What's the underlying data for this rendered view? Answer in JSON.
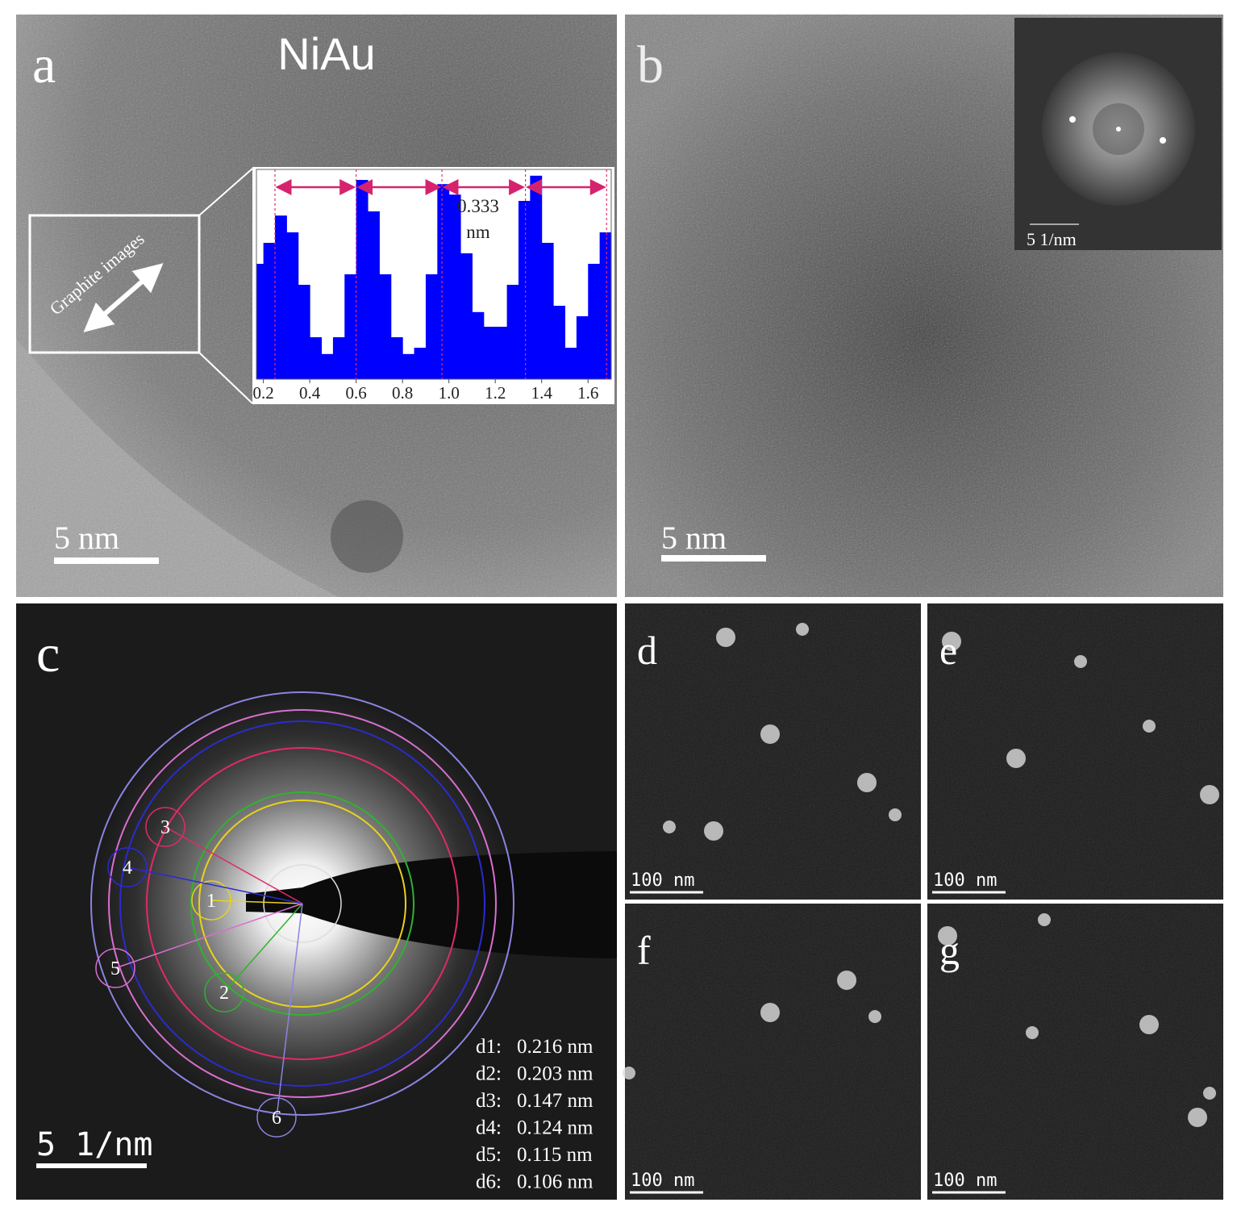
{
  "panels": [
    {
      "label": "a",
      "title": "NiAu",
      "scale_bar": "5 nm",
      "annotation": "Graphite images",
      "inset": {
        "type": "bar",
        "color": "#0000ff",
        "x": [
          0.17,
          0.2,
          0.25,
          0.3,
          0.35,
          0.4,
          0.45,
          0.5,
          0.55,
          0.6,
          0.65,
          0.7,
          0.75,
          0.8,
          0.85,
          0.9,
          0.95,
          1.0,
          1.05,
          1.1,
          1.15,
          1.2,
          1.25,
          1.3,
          1.35,
          1.4,
          1.45,
          1.5,
          1.55,
          1.6,
          1.65,
          1.7
        ],
        "values": [
          0.55,
          0.65,
          0.78,
          0.7,
          0.45,
          0.2,
          0.12,
          0.2,
          0.5,
          0.95,
          0.8,
          0.5,
          0.2,
          0.12,
          0.15,
          0.5,
          0.93,
          0.88,
          0.6,
          0.32,
          0.25,
          0.25,
          0.45,
          0.85,
          0.97,
          0.65,
          0.35,
          0.15,
          0.3,
          0.55,
          0.7,
          0.62
        ],
        "xlim": [
          0.17,
          1.7
        ],
        "ylim": [
          0,
          1
        ],
        "xticks": [
          0.2,
          0.4,
          0.6,
          0.8,
          {
            "value": 1,
            "label": "1.0"
          },
          1.2,
          1.4,
          1.6
        ],
        "peak_lines": [
          0.25,
          0.6,
          0.97,
          1.33,
          1.68
        ],
        "spacing_label": "0.333",
        "spacing_unit": "nm"
      }
    },
    {
      "label": "b",
      "scale_bar": "5 nm",
      "inset_scale_bar": "5 1/nm"
    },
    {
      "label": "c",
      "scale_bar": "5 1/nm",
      "ring_labels": [
        "1",
        "2",
        "3",
        "4",
        "5",
        "6"
      ],
      "d_spacings": [
        {
          "name": "d1:",
          "value": "0.216 nm"
        },
        {
          "name": "d2:",
          "value": "0.203 nm"
        },
        {
          "name": "d3:",
          "value": "0.147 nm"
        },
        {
          "name": "d4:",
          "value": "0.124 nm"
        },
        {
          "name": "d5:",
          "value": "0.115 nm"
        },
        {
          "name": "d6:",
          "value": "0.106 nm"
        }
      ]
    },
    {
      "label": "d",
      "scale_bar": "100 nm"
    },
    {
      "label": "e",
      "scale_bar": "100 nm"
    },
    {
      "label": "f",
      "scale_bar": "100 nm"
    },
    {
      "label": "g",
      "scale_bar": "100 nm"
    }
  ]
}
